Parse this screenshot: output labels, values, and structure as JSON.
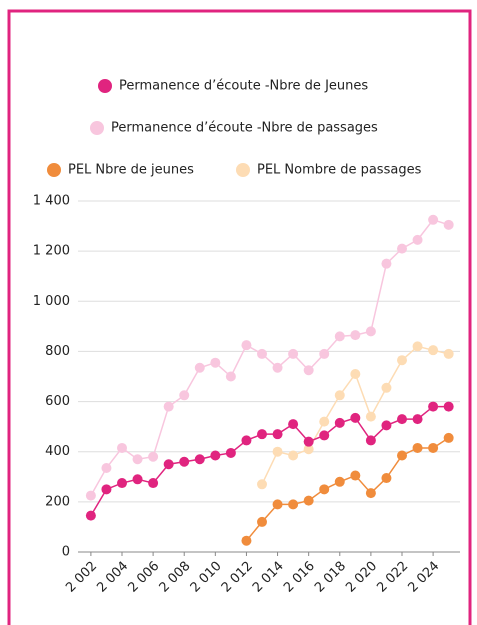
{
  "chart_data": {
    "type": "line",
    "x": [
      2002,
      2003,
      2004,
      2005,
      2006,
      2007,
      2008,
      2009,
      2010,
      2011,
      2012,
      2013,
      2014,
      2015,
      2016,
      2017,
      2018,
      2019,
      2020,
      2021,
      2022,
      2023,
      2024,
      2025
    ],
    "series": [
      {
        "name": "Permanence d’écoute -Nbre de Jeunes",
        "color": "#e0247f",
        "values": [
          145,
          250,
          275,
          290,
          275,
          350,
          360,
          370,
          385,
          395,
          445,
          470,
          470,
          510,
          440,
          465,
          515,
          535,
          445,
          505,
          530,
          530,
          580,
          580
        ]
      },
      {
        "name": "Permanence d’écoute -Nbre de passages",
        "color": "#f8c6de",
        "values": [
          225,
          335,
          415,
          370,
          380,
          580,
          625,
          735,
          755,
          700,
          825,
          790,
          735,
          790,
          725,
          790,
          860,
          865,
          880,
          1150,
          1210,
          1245,
          1325,
          1305
        ]
      },
      {
        "name": "PEL Nbre de jeunes",
        "color": "#f08c3c",
        "values": [
          null,
          null,
          null,
          null,
          null,
          null,
          null,
          null,
          null,
          null,
          45,
          120,
          190,
          190,
          205,
          250,
          280,
          305,
          235,
          295,
          385,
          415,
          415,
          455
        ]
      },
      {
        "name": "PEL Nombre de passages",
        "color": "#fddcb4",
        "values": [
          null,
          null,
          null,
          null,
          null,
          null,
          null,
          null,
          null,
          null,
          null,
          270,
          400,
          385,
          410,
          520,
          625,
          710,
          540,
          655,
          765,
          820,
          805,
          790
        ]
      }
    ],
    "xlim": [
      2001.3,
      2025.6
    ],
    "xticks": [
      {
        "value": 2002,
        "label": "2 002"
      },
      {
        "value": 2004,
        "label": "2 004"
      },
      {
        "value": 2006,
        "label": "2 006"
      },
      {
        "value": 2008,
        "label": "2 008"
      },
      {
        "value": 2010,
        "label": "2 010"
      },
      {
        "value": 2012,
        "label": "2 012"
      },
      {
        "value": 2014,
        "label": "2 014"
      },
      {
        "value": 2016,
        "label": "2 016"
      },
      {
        "value": 2018,
        "label": "2 018"
      },
      {
        "value": 2020,
        "label": "2 020"
      },
      {
        "value": 2022,
        "label": "2 022"
      },
      {
        "value": 2024,
        "label": "2 024"
      }
    ],
    "ylim": [
      0,
      1400
    ],
    "yticks": [
      0,
      200,
      400,
      600,
      800,
      {
        "value": 1000,
        "label": "1 000"
      },
      {
        "value": 1200,
        "label": "1 200"
      },
      {
        "value": 1400,
        "label": "1 400"
      }
    ],
    "grid": true
  }
}
